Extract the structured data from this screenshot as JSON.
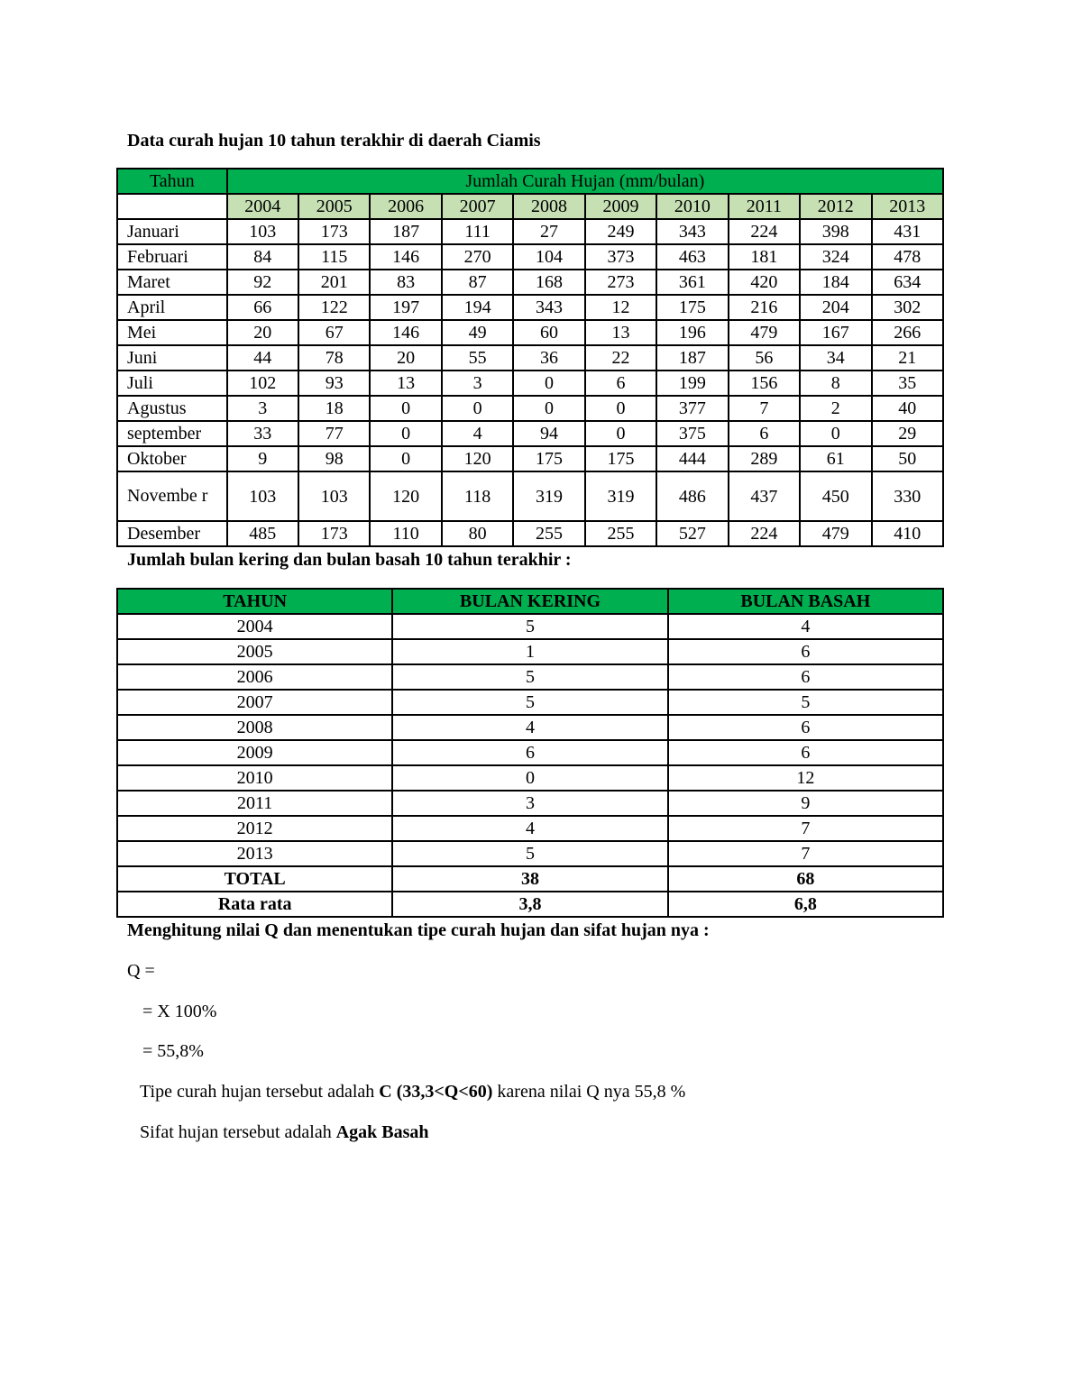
{
  "title": "Data curah hujan 10 tahun terakhir di daerah Ciamis",
  "rainfall_table": {
    "header_first": "Tahun",
    "header_span": "Jumlah Curah Hujan (mm/bulan)",
    "years": [
      "2004",
      "2005",
      "2006",
      "2007",
      "2008",
      "2009",
      "2010",
      "2011",
      "2012",
      "2013"
    ],
    "rows": [
      {
        "month": "Januari",
        "values": [
          "103",
          "173",
          "187",
          "111",
          "27",
          "249",
          "343",
          "224",
          "398",
          "431"
        ]
      },
      {
        "month": "Februari",
        "values": [
          "84",
          "115",
          "146",
          "270",
          "104",
          "373",
          "463",
          "181",
          "324",
          "478"
        ]
      },
      {
        "month": "Maret",
        "values": [
          "92",
          "201",
          "83",
          "87",
          "168",
          "273",
          "361",
          "420",
          "184",
          "634"
        ]
      },
      {
        "month": "April",
        "values": [
          "66",
          "122",
          "197",
          "194",
          "343",
          "12",
          "175",
          "216",
          "204",
          "302"
        ]
      },
      {
        "month": "Mei",
        "values": [
          "20",
          "67",
          "146",
          "49",
          "60",
          "13",
          "196",
          "479",
          "167",
          "266"
        ]
      },
      {
        "month": "Juni",
        "values": [
          "44",
          "78",
          "20",
          "55",
          "36",
          "22",
          "187",
          "56",
          "34",
          "21"
        ]
      },
      {
        "month": "Juli",
        "values": [
          "102",
          "93",
          "13",
          "3",
          "0",
          "6",
          "199",
          "156",
          "8",
          "35"
        ]
      },
      {
        "month": "Agustus",
        "values": [
          "3",
          "18",
          "0",
          "0",
          "0",
          "0",
          "377",
          "7",
          "2",
          "40"
        ]
      },
      {
        "month": "september",
        "values": [
          "33",
          "77",
          "0",
          "4",
          "94",
          "0",
          "375",
          "6",
          "0",
          "29"
        ]
      },
      {
        "month": "Oktober",
        "values": [
          "9",
          "98",
          "0",
          "120",
          "175",
          "175",
          "444",
          "289",
          "61",
          "50"
        ]
      },
      {
        "month": "Novembe r",
        "values": [
          "103",
          "103",
          "120",
          "118",
          "319",
          "319",
          "486",
          "437",
          "450",
          "330"
        ]
      },
      {
        "month": "Desember",
        "values": [
          "485",
          "173",
          "110",
          "80",
          "255",
          "255",
          "527",
          "224",
          "479",
          "410"
        ]
      }
    ]
  },
  "subtitle2": "Jumlah bulan kering dan bulan basah 10 tahun terakhir :",
  "months_table": {
    "headers": [
      "TAHUN",
      "BULAN KERING",
      "BULAN BASAH"
    ],
    "rows": [
      [
        "2004",
        "5",
        "4"
      ],
      [
        "2005",
        "1",
        "6"
      ],
      [
        "2006",
        "5",
        "6"
      ],
      [
        "2007",
        "5",
        "5"
      ],
      [
        "2008",
        "4",
        "6"
      ],
      [
        "2009",
        "6",
        "6"
      ],
      [
        "2010",
        "0",
        "12"
      ],
      [
        "2011",
        "3",
        "9"
      ],
      [
        "2012",
        "4",
        "7"
      ],
      [
        "2013",
        "5",
        "7"
      ]
    ],
    "total": [
      "TOTAL",
      "38",
      "68"
    ],
    "average": [
      "Rata rata",
      "3,8",
      "6,8"
    ]
  },
  "calc": {
    "heading": "Menghitung nilai Q dan menentukan tipe curah hujan dan sifat hujan nya :",
    "q_line": "Q =",
    "line2": "= X 100%",
    "line3": "= 55,8%",
    "type_prefix": "Tipe curah hujan tersebut adalah ",
    "type_bold": "C (33,3<Q<60)",
    "type_suffix": " karena nilai Q nya 55,8 %",
    "nature_prefix": "Sifat hujan tersebut adalah ",
    "nature_bold": "Agak Basah"
  },
  "colors": {
    "header_green": "#00b050",
    "year_green": "#c6e0b4"
  }
}
